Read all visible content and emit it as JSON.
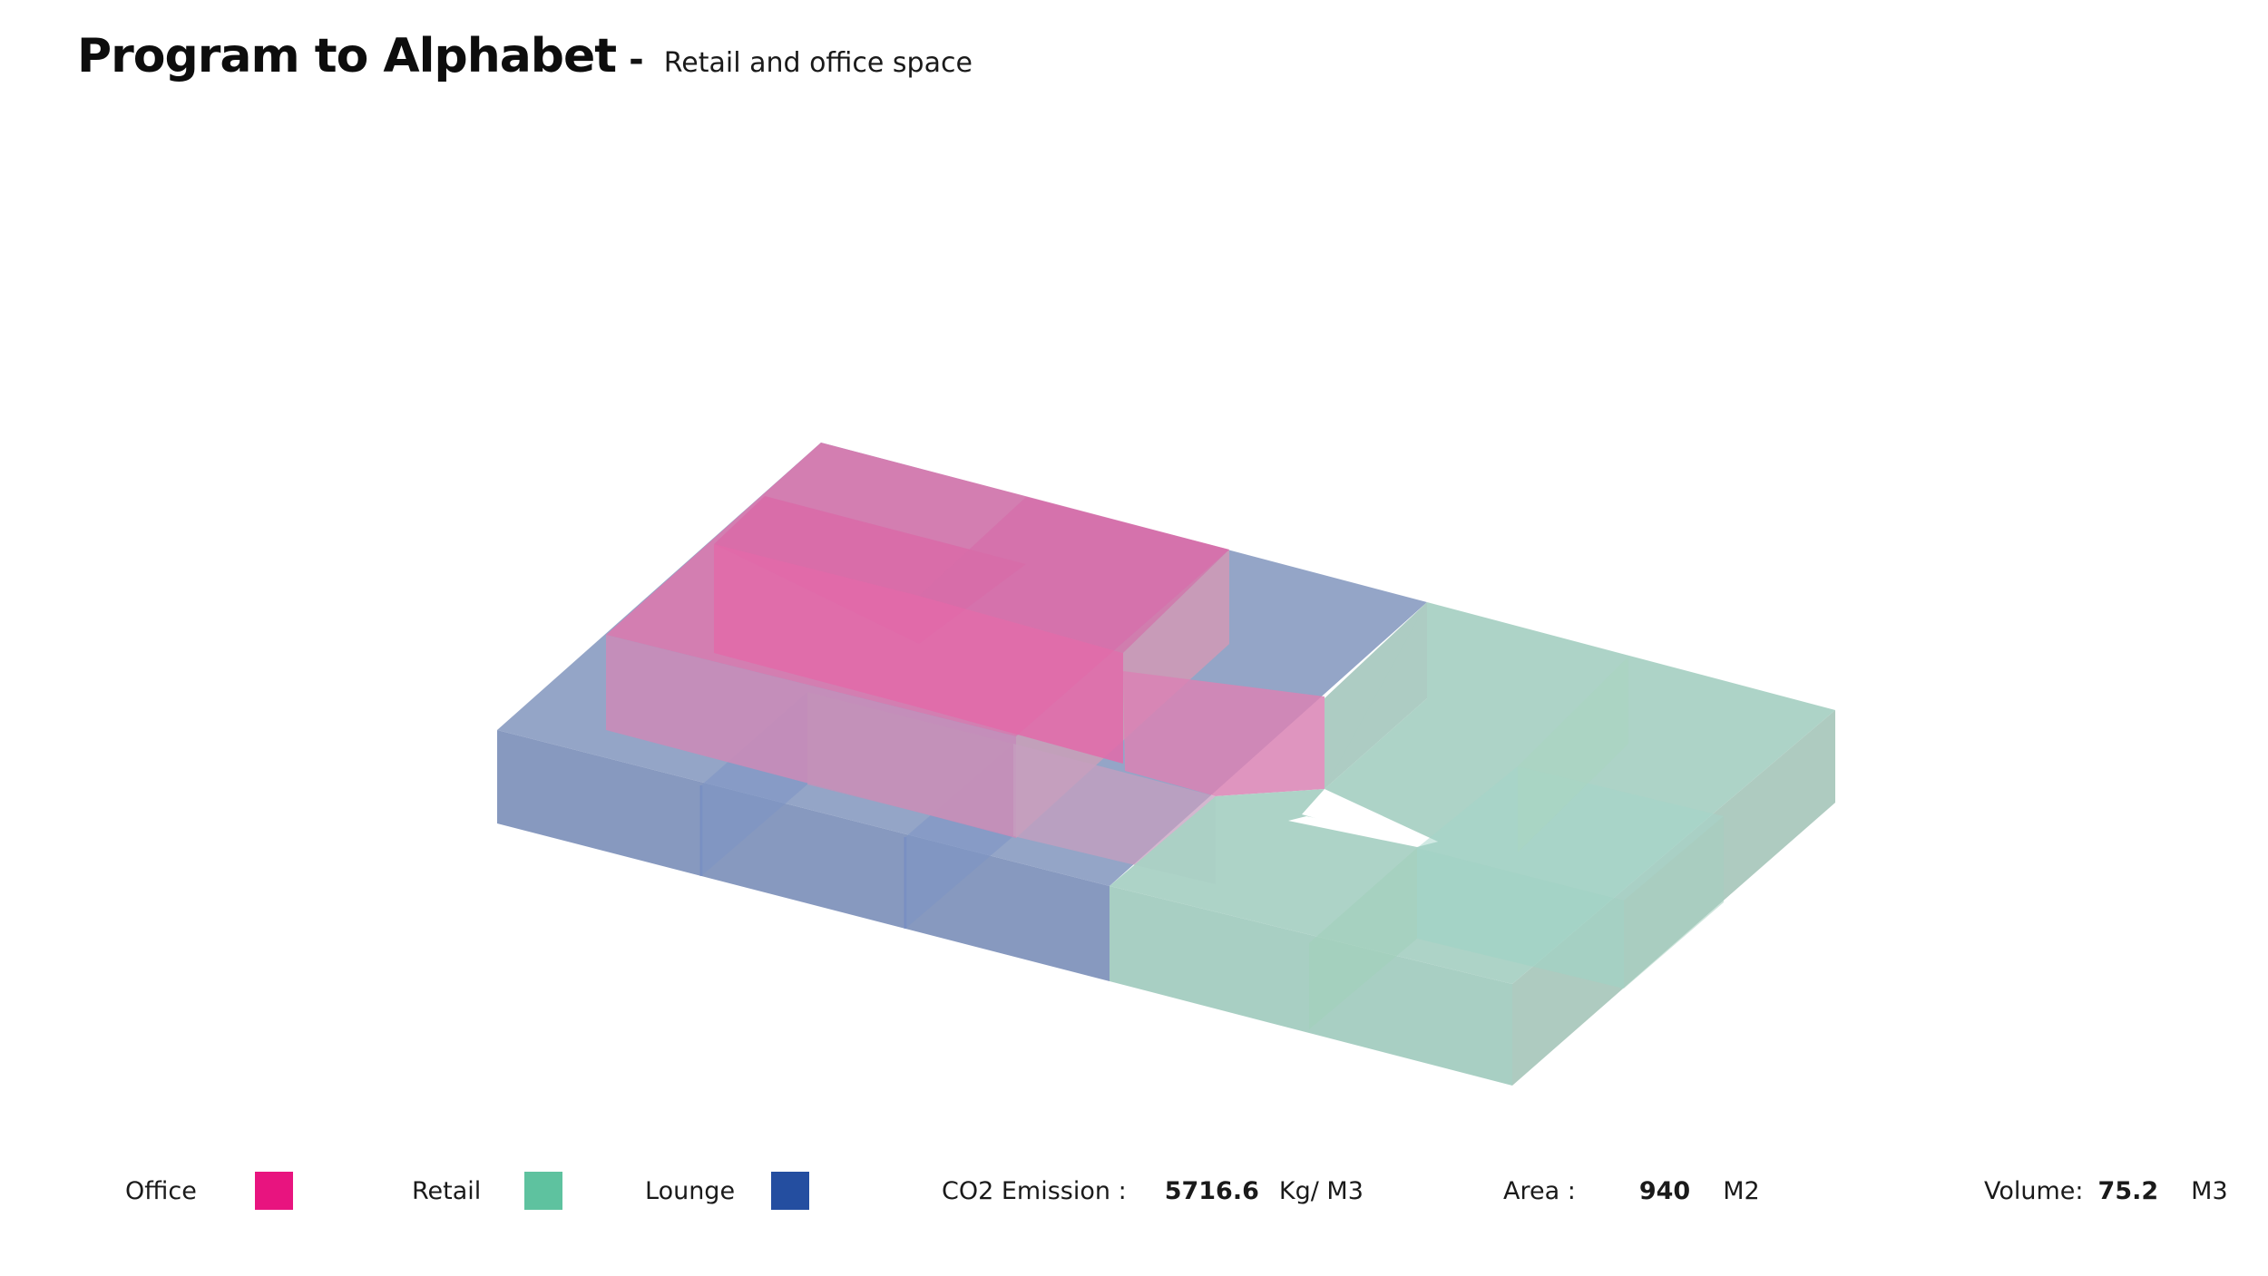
{
  "header": {
    "title": "Program to Alphabet",
    "separator": "-",
    "subtitle": "Retail and office space"
  },
  "legend": [
    {
      "label": "Office",
      "color": "#e8147f"
    },
    {
      "label": "Retail",
      "color": "#5ec29f"
    },
    {
      "label": "Lounge",
      "color": "#244ea0"
    }
  ],
  "metrics": {
    "co2": {
      "label": "CO2 Emission :",
      "value": "5716.6",
      "unit": "Kg/ M3"
    },
    "area": {
      "label": "Area :",
      "value": "940",
      "unit": "M2"
    },
    "volume": {
      "label": "Volume:",
      "value": "75.2",
      "unit": "M3"
    }
  },
  "diagram": {
    "colors": {
      "office": "#d8589b",
      "retail": "#9ecdbc",
      "lounge": "#7f92bb"
    }
  }
}
